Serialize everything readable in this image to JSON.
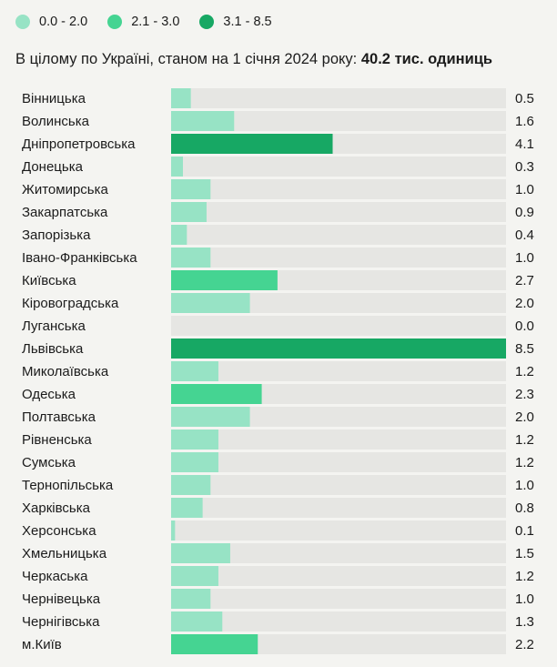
{
  "legend": {
    "items": [
      {
        "label": "0.0 - 2.0",
        "color": "#97e3c5"
      },
      {
        "label": "2.1 - 3.0",
        "color": "#45d492"
      },
      {
        "label": "3.1 - 8.5",
        "color": "#17a864"
      }
    ]
  },
  "summary": {
    "text": "В цілому по Україні, станом на 1 січня 2024 року:",
    "total": "40.2 тис. одиниць"
  },
  "chart_data": {
    "type": "bar",
    "orientation": "horizontal",
    "xlim": [
      0,
      8.5
    ],
    "grid": false,
    "legend_position": "top-left",
    "colors": {
      "track": "#e6e6e3",
      "low": "#97e3c5",
      "mid": "#45d492",
      "high": "#17a864"
    },
    "categories": [
      "Вінницька",
      "Волинська",
      "Дніпропетровська",
      "Донецька",
      "Житомирська",
      "Закарпатська",
      "Запорізька",
      "Івано-Франківська",
      "Київська",
      "Кіровоградська",
      "Луганська",
      "Львівська",
      "Миколаївська",
      "Одеська",
      "Полтавська",
      "Рівненська",
      "Сумська",
      "Тернопільська",
      "Харківська",
      "Херсонська",
      "Хмельницька",
      "Черкаська",
      "Чернівецька",
      "Чернігівська",
      "м.Київ"
    ],
    "values": [
      0.5,
      1.6,
      4.1,
      0.3,
      1.0,
      0.9,
      0.4,
      1.0,
      2.7,
      2.0,
      0.0,
      8.5,
      1.2,
      2.3,
      2.0,
      1.2,
      1.2,
      1.0,
      0.8,
      0.1,
      1.5,
      1.2,
      1.0,
      1.3,
      2.2
    ],
    "value_labels": [
      "0.5",
      "1.6",
      "4.1",
      "0.3",
      "1.0",
      "0.9",
      "0.4",
      "1.0",
      "2.7",
      "2.0",
      "0.0",
      "8.5",
      "1.2",
      "2.3",
      "2.0",
      "1.2",
      "1.2",
      "1.0",
      "0.8",
      "0.1",
      "1.5",
      "1.2",
      "1.0",
      "1.3",
      "2.2"
    ]
  }
}
